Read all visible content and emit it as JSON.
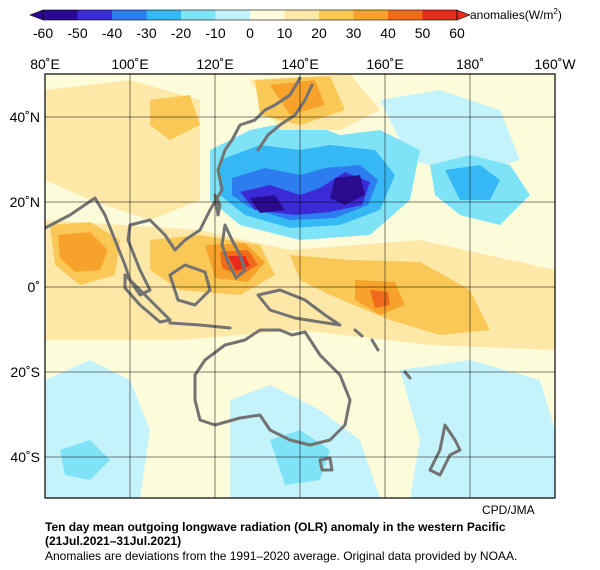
{
  "colorbar": {
    "ticks": [
      "-60",
      "-50",
      "-40",
      "-30",
      "-20",
      "-10",
      "0",
      "10",
      "20",
      "30",
      "40",
      "50",
      "60"
    ],
    "label": "anomalies(W/m",
    "label_sup": "2",
    "label_close": ")",
    "colors": [
      "#2a0b8f",
      "#3a2bd6",
      "#2d7df0",
      "#35b8f4",
      "#7fe3f7",
      "#c5f3fb",
      "#fdfcda",
      "#fde8a8",
      "#f9c857",
      "#f7a32b",
      "#ef6a1a",
      "#e82a1c"
    ]
  },
  "map": {
    "lon_labels": [
      "80˚E",
      "100˚E",
      "120˚E",
      "140˚E",
      "160˚E",
      "180˚",
      "160˚W"
    ],
    "lat_labels": [
      "40˚N",
      "20˚N",
      "0˚",
      "20˚S",
      "40˚S"
    ],
    "credit": "CPD/JMA"
  },
  "caption": {
    "title": "Ten day mean outgoing longwave radiation (OLR) anomaly in the western Pacific",
    "period": "(21Jul.2021–31Jul.2021)",
    "note": "Anomalies are deviations from the 1991–2020 average. Original data provided by NOAA."
  }
}
